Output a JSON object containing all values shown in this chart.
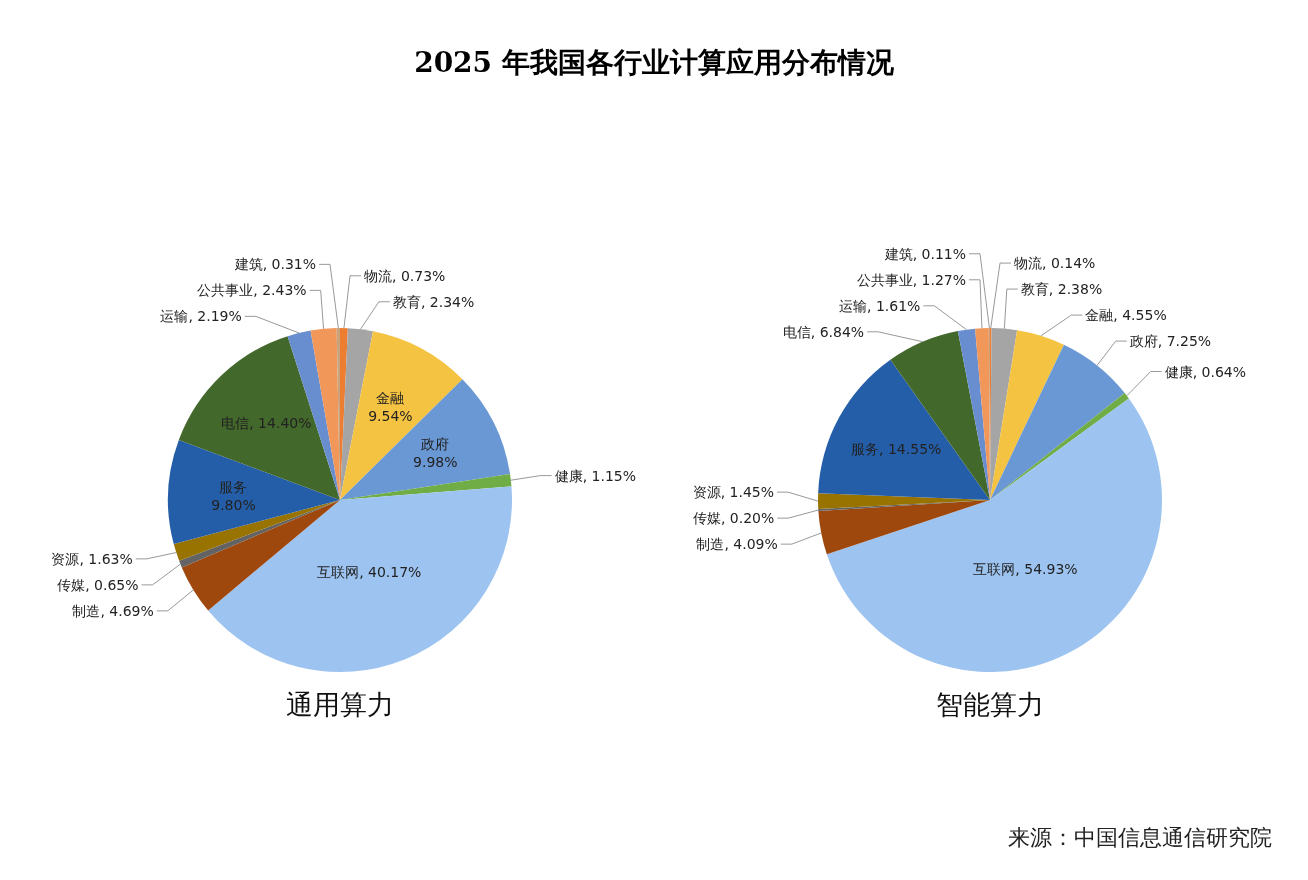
{
  "chart_data": [
    {
      "type": "pie",
      "title": "通用算力",
      "annotations": [
        "2025 年我国各行业计算应用分布情况"
      ],
      "data_labels": true,
      "categories": [
        "物流",
        "教育",
        "金融",
        "政府",
        "健康",
        "互联网",
        "制造",
        "传媒",
        "资源",
        "服务",
        "电信",
        "运输",
        "公共事业",
        "建筑"
      ],
      "values": [
        0.73,
        2.34,
        9.54,
        9.98,
        1.15,
        40.17,
        4.69,
        0.65,
        1.63,
        9.8,
        14.4,
        2.19,
        2.43,
        0.31
      ],
      "value_labels": [
        "0.73%",
        "2.34%",
        "9.54%",
        "9.98%",
        "1.15%",
        "40.17%",
        "4.69%",
        "0.65%",
        "1.63%",
        "9.80%",
        "14.40%",
        "2.19%",
        "2.43%",
        "0.31%"
      ],
      "colors": [
        "#ed7d31",
        "#a5a5a5",
        "#f5c342",
        "#6a98d4",
        "#70ad47",
        "#9dc3f0",
        "#9e480e",
        "#636363",
        "#997300",
        "#255ea8",
        "#43682b",
        "#698ed0",
        "#f1975a",
        "#c9a27e"
      ]
    },
    {
      "type": "pie",
      "title": "智能算力",
      "annotations": [
        "来源：中国信息通信研究院"
      ],
      "data_labels": true,
      "categories": [
        "物流",
        "教育",
        "金融",
        "政府",
        "健康",
        "互联网",
        "制造",
        "传媒",
        "资源",
        "服务",
        "电信",
        "运输",
        "公共事业",
        "建筑"
      ],
      "values": [
        0.14,
        2.38,
        4.55,
        7.25,
        0.64,
        54.93,
        4.09,
        0.2,
        1.45,
        14.55,
        6.84,
        1.61,
        1.27,
        0.11
      ],
      "value_labels": [
        "0.14%",
        "2.38%",
        "4.55%",
        "7.25%",
        "0.64%",
        "54.93%",
        "4.09%",
        "0.20%",
        "1.45%",
        "14.55%",
        "6.84%",
        "1.61%",
        "1.27%",
        "0.11%"
      ],
      "colors": [
        "#ed7d31",
        "#a5a5a5",
        "#f5c342",
        "#6a98d4",
        "#70ad47",
        "#9dc3f0",
        "#9e480e",
        "#636363",
        "#997300",
        "#255ea8",
        "#43682b",
        "#698ed0",
        "#f1975a",
        "#c9a27e"
      ]
    }
  ]
}
